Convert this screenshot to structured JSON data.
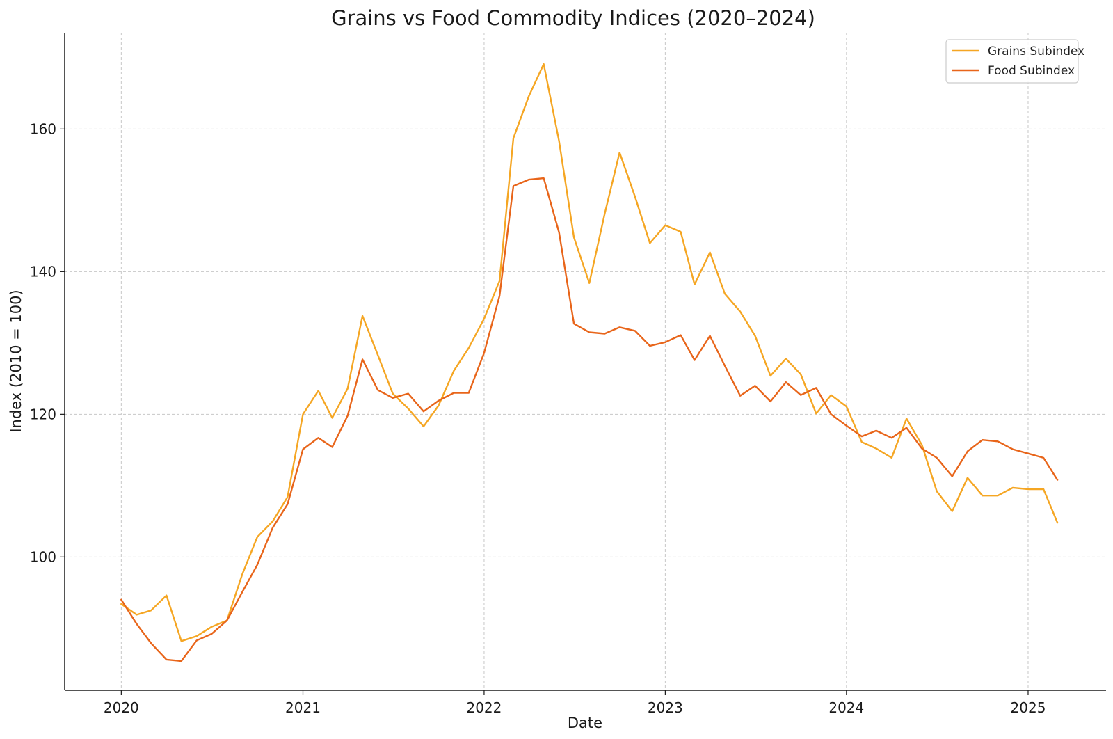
{
  "chart_data": {
    "type": "line",
    "title": "Grains vs Food Commodity Indices (2020–2024)",
    "xlabel": "Date",
    "ylabel": "Index (2010 = 100)",
    "xlim": [
      "2019-09-09",
      "2025-06-07"
    ],
    "ylim": [
      81.3,
      173.5
    ],
    "x_ticks": [
      "2020",
      "2021",
      "2022",
      "2023",
      "2024",
      "2025"
    ],
    "y_ticks": [
      100,
      120,
      140,
      160
    ],
    "grid": true,
    "legend_position": "top-right",
    "x": [
      "2020-01",
      "2020-02",
      "2020-03",
      "2020-04",
      "2020-05",
      "2020-06",
      "2020-07",
      "2020-08",
      "2020-09",
      "2020-10",
      "2020-11",
      "2020-12",
      "2021-01",
      "2021-02",
      "2021-03",
      "2021-04",
      "2021-05",
      "2021-06",
      "2021-07",
      "2021-08",
      "2021-09",
      "2021-10",
      "2021-11",
      "2021-12",
      "2022-01",
      "2022-02",
      "2022-03",
      "2022-04",
      "2022-05",
      "2022-06",
      "2022-07",
      "2022-08",
      "2022-09",
      "2022-10",
      "2022-11",
      "2022-12",
      "2023-01",
      "2023-02",
      "2023-03",
      "2023-04",
      "2023-05",
      "2023-06",
      "2023-07",
      "2023-08",
      "2023-09",
      "2023-10",
      "2023-11",
      "2023-12",
      "2024-01",
      "2024-02",
      "2024-03",
      "2024-04",
      "2024-05",
      "2024-06",
      "2024-07",
      "2024-08",
      "2024-09",
      "2024-10",
      "2024-11",
      "2024-12",
      "2025-01",
      "2025-02",
      "2025-03"
    ],
    "series": [
      {
        "name": "Grains Subindex",
        "color": "#f5a623",
        "values": [
          93.4,
          91.9,
          92.5,
          94.6,
          88.2,
          88.9,
          90.2,
          91.1,
          97.6,
          102.8,
          105.0,
          108.4,
          120.0,
          123.3,
          119.5,
          123.6,
          133.8,
          128.3,
          122.9,
          120.8,
          118.3,
          121.2,
          126.1,
          129.3,
          133.4,
          138.7,
          158.7,
          164.6,
          169.1,
          158.3,
          144.8,
          138.4,
          148.1,
          156.7,
          150.5,
          144.0,
          146.5,
          145.6,
          138.2,
          142.7,
          136.9,
          134.4,
          131.0,
          125.4,
          127.8,
          125.6,
          120.1,
          122.7,
          121.1,
          116.1,
          115.2,
          113.9,
          119.4,
          115.7,
          109.2,
          106.4,
          111.1,
          108.6,
          108.6,
          109.7,
          109.5,
          109.5,
          104.8
        ]
      },
      {
        "name": "Food Subindex",
        "color": "#e8651a",
        "values": [
          94.0,
          90.6,
          87.9,
          85.6,
          85.4,
          88.3,
          89.2,
          91.1,
          95.1,
          98.9,
          104.1,
          107.4,
          115.1,
          116.7,
          115.4,
          119.8,
          127.7,
          123.4,
          122.3,
          122.9,
          120.4,
          121.9,
          123.0,
          123.0,
          128.6,
          136.6,
          152.0,
          152.9,
          153.1,
          145.5,
          132.7,
          131.5,
          131.3,
          132.2,
          131.7,
          129.6,
          130.1,
          131.1,
          127.6,
          131.0,
          126.8,
          122.6,
          124.0,
          121.8,
          124.5,
          122.7,
          123.7,
          120.0,
          118.4,
          116.9,
          117.7,
          116.7,
          118.1,
          115.2,
          113.9,
          111.3,
          114.8,
          116.4,
          116.2,
          115.1,
          114.5,
          113.9,
          110.8
        ]
      }
    ]
  }
}
